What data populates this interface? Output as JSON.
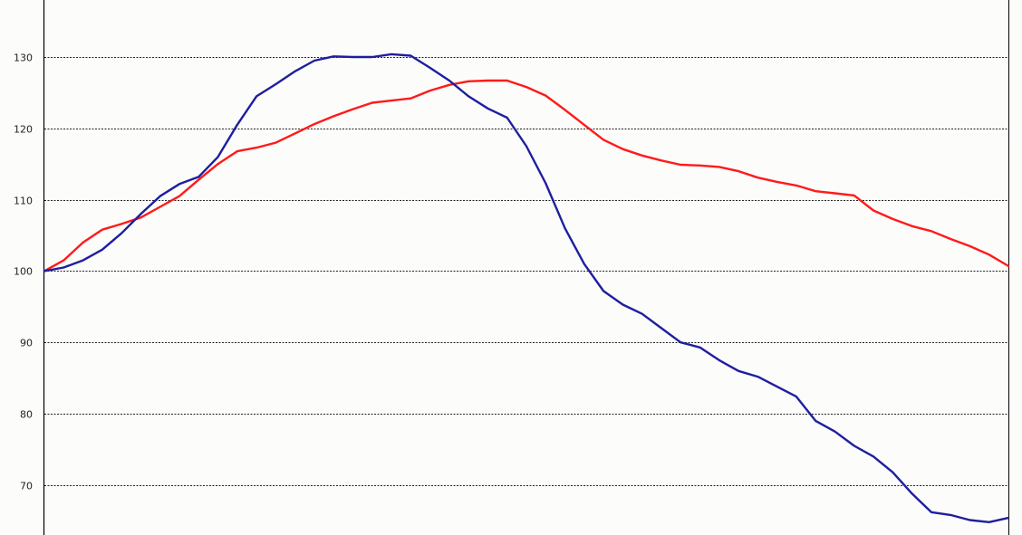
{
  "chart_data": {
    "type": "line",
    "title": "",
    "xlabel": "",
    "ylabel": "",
    "ylim": [
      63,
      138
    ],
    "grid": true,
    "y_ticks": [
      70,
      80,
      90,
      100,
      110,
      120,
      130
    ],
    "y_tick_labels": [
      "70",
      "80",
      "90",
      "100",
      "110",
      "120",
      "130"
    ],
    "x": [
      0,
      2,
      4,
      6,
      8,
      10,
      12,
      14,
      16,
      18,
      20,
      22,
      24,
      26,
      28,
      30,
      32,
      34,
      36,
      38,
      40,
      42,
      44,
      46,
      48,
      50,
      52,
      54,
      56,
      58,
      60,
      62,
      64,
      66,
      68,
      70,
      72,
      74,
      76,
      78,
      80,
      82,
      84,
      86,
      88,
      90,
      92,
      94,
      96,
      98,
      100
    ],
    "series": [
      {
        "color": "#ff1a1a",
        "values": [
          100,
          101.5,
          104,
          105.8,
          106.6,
          107.5,
          109,
          110.5,
          112.8,
          115,
          116.8,
          117.3,
          118,
          119.3,
          120.6,
          121.7,
          122.7,
          123.6,
          123.9,
          124.2,
          125.3,
          126.1,
          126.6,
          126.7,
          126.7,
          125.8,
          124.6,
          122.6,
          120.5,
          118.4,
          117.1,
          116.2,
          115.5,
          114.9,
          114.8,
          114.6,
          114,
          113.1,
          112.5,
          112,
          111.2,
          110.9,
          110.6,
          108.5,
          107.3,
          106.3,
          105.6,
          104.5,
          103.5,
          102.3,
          100.7
        ]
      },
      {
        "color": "#1e1ea0",
        "values": [
          100,
          100.5,
          101.5,
          103,
          105.3,
          108,
          110.5,
          112.2,
          113.2,
          116,
          120.5,
          124.5,
          126.2,
          128,
          129.5,
          130.1,
          130,
          130,
          130.4,
          130.2,
          128.5,
          126.7,
          124.5,
          122.8,
          121.5,
          117.5,
          112.3,
          106,
          101,
          97.2,
          95.3,
          94,
          92,
          90,
          89.3,
          87.5,
          86,
          85.2,
          83.8,
          82.4,
          79,
          77.5,
          75.5,
          74,
          71.8,
          68.8,
          66.2,
          65.8,
          65.1,
          64.8,
          65.4
        ]
      }
    ]
  }
}
